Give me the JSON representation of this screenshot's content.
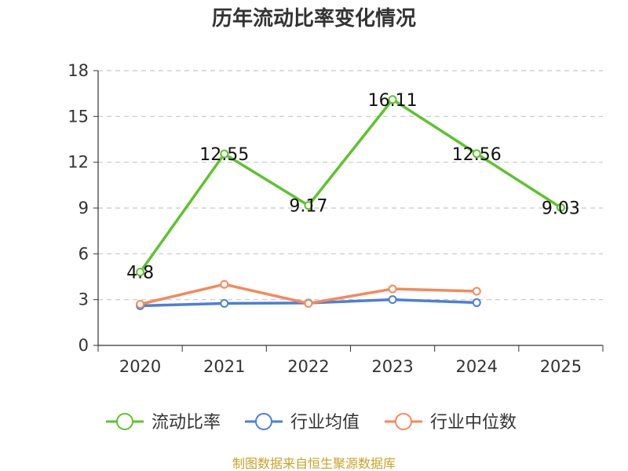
{
  "chart_data": {
    "type": "line",
    "title": "历年流动比率变化情况",
    "categories": [
      "2020",
      "2021",
      "2022",
      "2023",
      "2024",
      "2025"
    ],
    "ylim": [
      0,
      18
    ],
    "yticks": [
      0,
      3,
      6,
      9,
      12,
      15,
      18
    ],
    "grid": true,
    "legend_position": "bottom",
    "series": [
      {
        "name": "流动比率",
        "color": "#5cc42c",
        "values": [
          4.8,
          12.55,
          9.17,
          16.11,
          12.56,
          9.03
        ],
        "labels": [
          "4.8",
          "12.55",
          "9.17",
          "16.11",
          "12.56",
          "9.03"
        ]
      },
      {
        "name": "行业均值",
        "color": "#4a7fdc",
        "values": [
          2.6,
          2.75,
          2.78,
          3.0,
          2.8,
          null
        ]
      },
      {
        "name": "行业中位数",
        "color": "#f5895a",
        "values": [
          2.7,
          4.0,
          2.75,
          3.7,
          3.55,
          null
        ]
      }
    ],
    "source": "制图数据来自恒生聚源数据库"
  }
}
